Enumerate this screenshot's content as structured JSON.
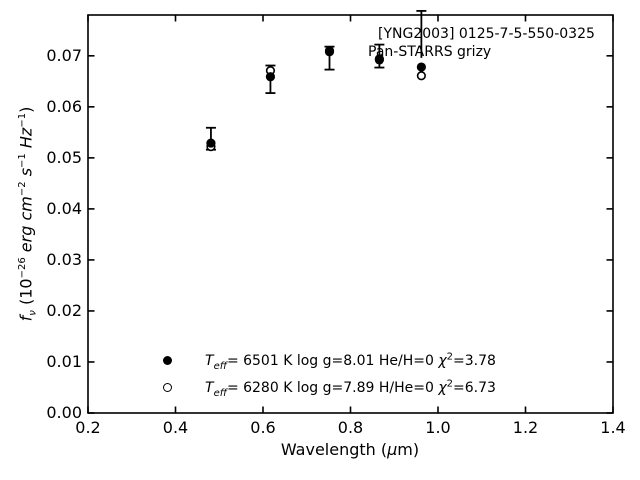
{
  "colors": {
    "foreground": "#000000",
    "background": "#ffffff"
  },
  "annotation": {
    "line1": "[YNG2003] 0125-7-5-550-0325",
    "line2": "Pan-STARRS grizy"
  },
  "labels": {
    "xlabel_parts": [
      [
        "Wavelength (",
        ""
      ],
      [
        "μ",
        "i"
      ],
      [
        "m)",
        ""
      ]
    ],
    "ylabel_parts": [
      [
        "f",
        "i"
      ],
      [
        "ν",
        "subi"
      ],
      [
        " (10",
        ""
      ],
      [
        "−26",
        "sup"
      ],
      [
        " ",
        ""
      ],
      [
        "erg",
        "i"
      ],
      [
        " ",
        ""
      ],
      [
        "cm",
        "i"
      ],
      [
        "−2",
        "sup"
      ],
      [
        " ",
        ""
      ],
      [
        "s",
        "i"
      ],
      [
        "−1",
        "sup"
      ],
      [
        " ",
        ""
      ],
      [
        "Hz",
        "i"
      ],
      [
        "−1",
        "sup"
      ],
      [
        ")",
        ""
      ]
    ]
  },
  "legend": {
    "rows": [
      {
        "marker": "filled-circle",
        "parts": [
          [
            "T",
            "i"
          ],
          [
            "eff",
            "subi"
          ],
          [
            "=  6501 K  log g=8.01  He/H=0  ",
            ""
          ],
          [
            "χ",
            "i"
          ],
          [
            "2",
            "sup"
          ],
          [
            "=3.78",
            ""
          ]
        ]
      },
      {
        "marker": "open-circle",
        "parts": [
          [
            "T",
            "i"
          ],
          [
            "eff",
            "subi"
          ],
          [
            "=  6280 K  log g=7.89  H/He=0  ",
            ""
          ],
          [
            "χ",
            "i"
          ],
          [
            "2",
            "sup"
          ],
          [
            "=6.73",
            ""
          ]
        ]
      }
    ]
  },
  "chart_data": {
    "type": "scatter",
    "title": "[YNG2003] 0125-7-5-550-0325",
    "subtitle": "Pan-STARRS grizy",
    "xlabel": "Wavelength (μm)",
    "ylabel": "f_ν (10^-26 erg cm^-2 s^-1 Hz^-1)",
    "xlim": [
      0.2,
      1.4
    ],
    "ylim": [
      0.0,
      0.078
    ],
    "xticks": [
      "0.2",
      "0.4",
      "0.6",
      "0.8",
      "1.0",
      "1.2",
      "1.4"
    ],
    "yticks": [
      "0.00",
      "0.01",
      "0.02",
      "0.03",
      "0.04",
      "0.05",
      "0.06",
      "0.07"
    ],
    "grid": false,
    "legend_position": "lower center",
    "bands": [
      "g",
      "r",
      "i",
      "z",
      "y"
    ],
    "x": [
      0.481,
      0.617,
      0.752,
      0.866,
      0.962
    ],
    "series": [
      {
        "name": "Teff= 6501 K  log g=8.01  He/H=0  chi2=3.78",
        "marker": "filled-circle",
        "values": [
          0.0529,
          0.0659,
          0.0708,
          0.0692,
          0.0678
        ]
      },
      {
        "name": "Teff= 6280 K  log g=7.89  H/He=0  chi2=6.73",
        "marker": "open-circle",
        "values": [
          0.0522,
          0.0671,
          0.071,
          0.0694,
          0.0661
        ]
      }
    ],
    "error_bars": [
      {
        "x": 0.481,
        "low": 0.0516,
        "high": 0.0559,
        "cap_low": true,
        "cap_high": true
      },
      {
        "x": 0.617,
        "low": 0.0627,
        "high": 0.0681,
        "cap_low": true,
        "cap_high": true
      },
      {
        "x": 0.752,
        "low": 0.0673,
        "high": 0.0718,
        "cap_low": true,
        "cap_high": true
      },
      {
        "x": 0.866,
        "low": 0.0677,
        "high": 0.0722,
        "cap_low": true,
        "cap_high": true
      },
      {
        "x": 0.962,
        "low": 0.0696,
        "high": 0.0788,
        "cap_low": false,
        "cap_high": true
      }
    ]
  }
}
